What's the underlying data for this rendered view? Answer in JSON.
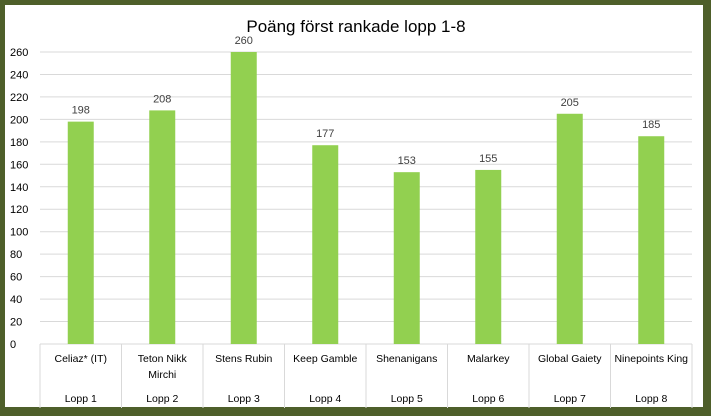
{
  "chart_data": {
    "type": "bar",
    "title": "Poäng först rankade lopp 1-8",
    "categories": [
      {
        "name": "Celiaz* (IT)",
        "group": "Lopp 1"
      },
      {
        "name": "Teton Nikk Mirchi",
        "group": "Lopp 2"
      },
      {
        "name": "Stens Rubin",
        "group": "Lopp 3"
      },
      {
        "name": "Keep Gamble",
        "group": "Lopp 4"
      },
      {
        "name": "Shenanigans",
        "group": "Lopp 5"
      },
      {
        "name": "Malarkey",
        "group": "Lopp 6"
      },
      {
        "name": "Global Gaiety",
        "group": "Lopp 7"
      },
      {
        "name": "Ninepoints King",
        "group": "Lopp 8"
      }
    ],
    "values": [
      198,
      208,
      260,
      177,
      153,
      155,
      205,
      185
    ],
    "ylim": [
      0,
      260
    ],
    "yticks": [
      0,
      20,
      40,
      60,
      80,
      100,
      120,
      140,
      160,
      180,
      200,
      220,
      240,
      260
    ],
    "grid": true,
    "data_labels": true,
    "bar_color": "#92d050",
    "frame_color": "#4e5f2a"
  }
}
